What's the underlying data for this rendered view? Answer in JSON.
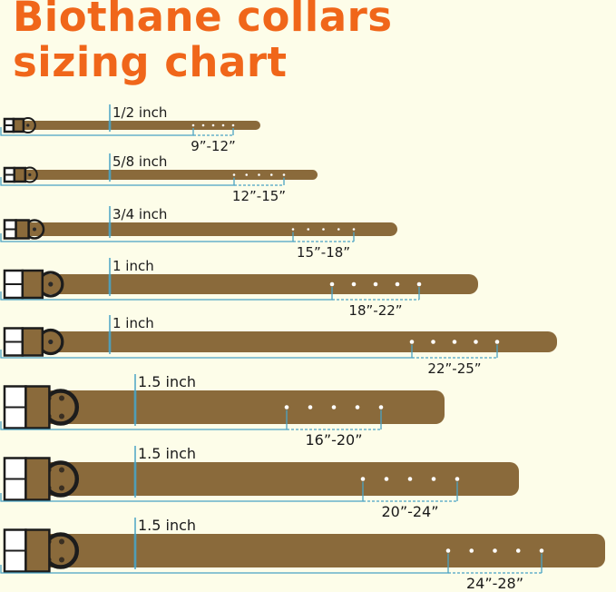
{
  "title": {
    "line1": "Biothane collars",
    "line2": "sizing chart"
  },
  "colors": {
    "title": "#f0661a",
    "strap": "#8a6a3b",
    "measure_line": "#4aa3c4",
    "hardware": "#1c1c1c",
    "background": "#fdfde9"
  },
  "collars": [
    {
      "width": "1/2 inch",
      "range": "9”-12”"
    },
    {
      "width": "5/8 inch",
      "range": "12”-15”"
    },
    {
      "width": "3/4 inch",
      "range": "15”-18”"
    },
    {
      "width": "1 inch",
      "range": "18”-22”"
    },
    {
      "width": "1 inch",
      "range": "22”-25”"
    },
    {
      "width": "1.5 inch",
      "range": "16”-20”"
    },
    {
      "width": "1.5 inch",
      "range": "20”-24”"
    },
    {
      "width": "1.5 inch",
      "range": "24”-28”"
    }
  ]
}
